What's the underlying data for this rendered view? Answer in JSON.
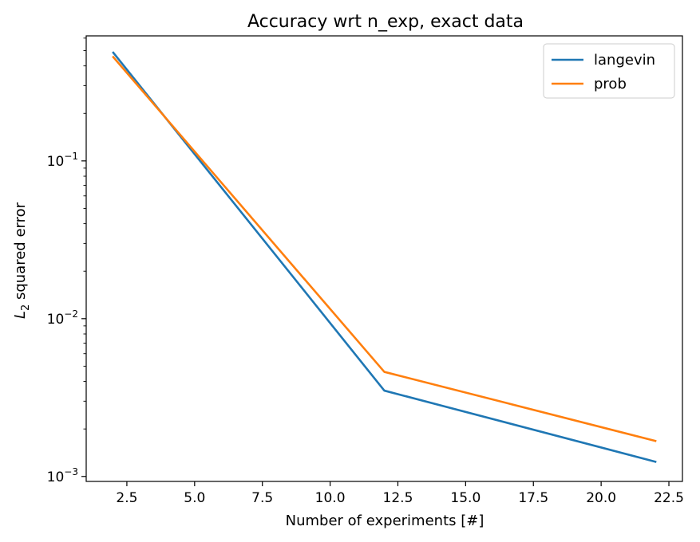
{
  "chart_data": {
    "type": "line",
    "title": "Accuracy wrt n_exp, exact data",
    "xlabel": "Number of experiments [#]",
    "ylabel": {
      "main": "L",
      "sub": "2",
      "rest": " squared error"
    },
    "x": [
      2,
      12,
      22
    ],
    "xlim": [
      1.0,
      23.0
    ],
    "ylim": [
      0.00093,
      0.62
    ],
    "yscale": "log",
    "xticks": [
      2.5,
      5.0,
      7.5,
      10.0,
      12.5,
      15.0,
      17.5,
      20.0,
      22.5
    ],
    "xtick_labels": [
      "2.5",
      "5.0",
      "7.5",
      "10.0",
      "12.5",
      "15.0",
      "17.5",
      "20.0",
      "22.5"
    ],
    "yticks": [
      {
        "value": 0.1,
        "base": "10",
        "exp": "−1"
      },
      {
        "value": 0.01,
        "base": "10",
        "exp": "−2"
      },
      {
        "value": 0.001,
        "base": "10",
        "exp": "−3"
      }
    ],
    "series": [
      {
        "name": "langevin",
        "color": "#1f77b4",
        "values": [
          0.485,
          0.0035,
          0.00124
        ]
      },
      {
        "name": "prob",
        "color": "#ff7f0e",
        "values": [
          0.455,
          0.0046,
          0.00168
        ]
      }
    ],
    "legend_position": "top-right",
    "grid": false
  }
}
